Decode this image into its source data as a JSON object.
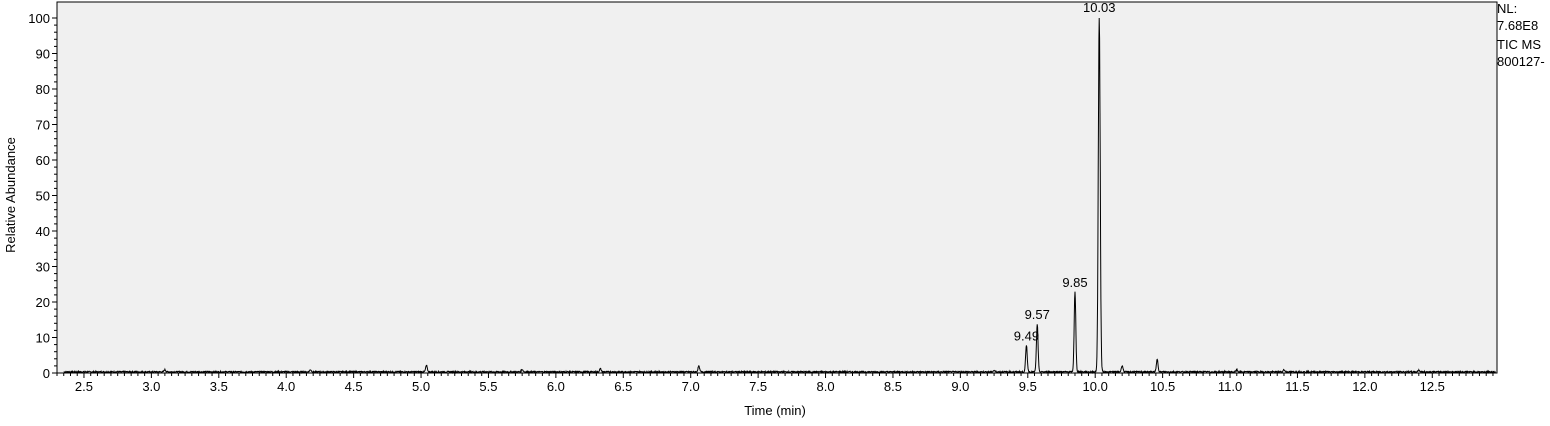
{
  "chart_data": {
    "type": "line",
    "xlabel": "Time (min)",
    "ylabel": "Relative Abundance",
    "xlim": [
      2.3,
      12.98
    ],
    "ylim": [
      0,
      100
    ],
    "x_ticks": [
      "2.5",
      "3.0",
      "3.5",
      "4.0",
      "4.5",
      "5.0",
      "5.5",
      "6.0",
      "6.5",
      "7.0",
      "7.5",
      "8.0",
      "8.5",
      "9.0",
      "9.5",
      "10.0",
      "10.5",
      "11.0",
      "11.5",
      "12.0",
      "12.5"
    ],
    "y_ticks": [
      "0",
      "10",
      "20",
      "30",
      "40",
      "50",
      "60",
      "70",
      "80",
      "90",
      "100"
    ],
    "peaks": [
      {
        "x": 9.49,
        "y": 7.5,
        "label": "9.49"
      },
      {
        "x": 9.57,
        "y": 13.5,
        "label": "9.57"
      },
      {
        "x": 9.85,
        "y": 22.5,
        "label": "9.85"
      },
      {
        "x": 10.03,
        "y": 100,
        "label": "10.03"
      }
    ],
    "minor_peaks": [
      {
        "x": 3.1,
        "y": 0.6
      },
      {
        "x": 4.18,
        "y": 0.6
      },
      {
        "x": 5.04,
        "y": 1.8
      },
      {
        "x": 5.75,
        "y": 0.7
      },
      {
        "x": 6.33,
        "y": 0.9
      },
      {
        "x": 7.06,
        "y": 1.6
      },
      {
        "x": 9.25,
        "y": 0.4
      },
      {
        "x": 10.2,
        "y": 1.8
      },
      {
        "x": 10.46,
        "y": 3.6
      },
      {
        "x": 11.05,
        "y": 0.5
      },
      {
        "x": 11.4,
        "y": 0.6
      },
      {
        "x": 12.4,
        "y": 0.5
      }
    ],
    "grid": false,
    "background": "#f0f0f0",
    "trace_color": "#000000"
  },
  "info": {
    "nl_label": "NL:",
    "nl_value": "7.68E8",
    "scan_filter": "TIC  MS",
    "file_name": "800127-"
  }
}
